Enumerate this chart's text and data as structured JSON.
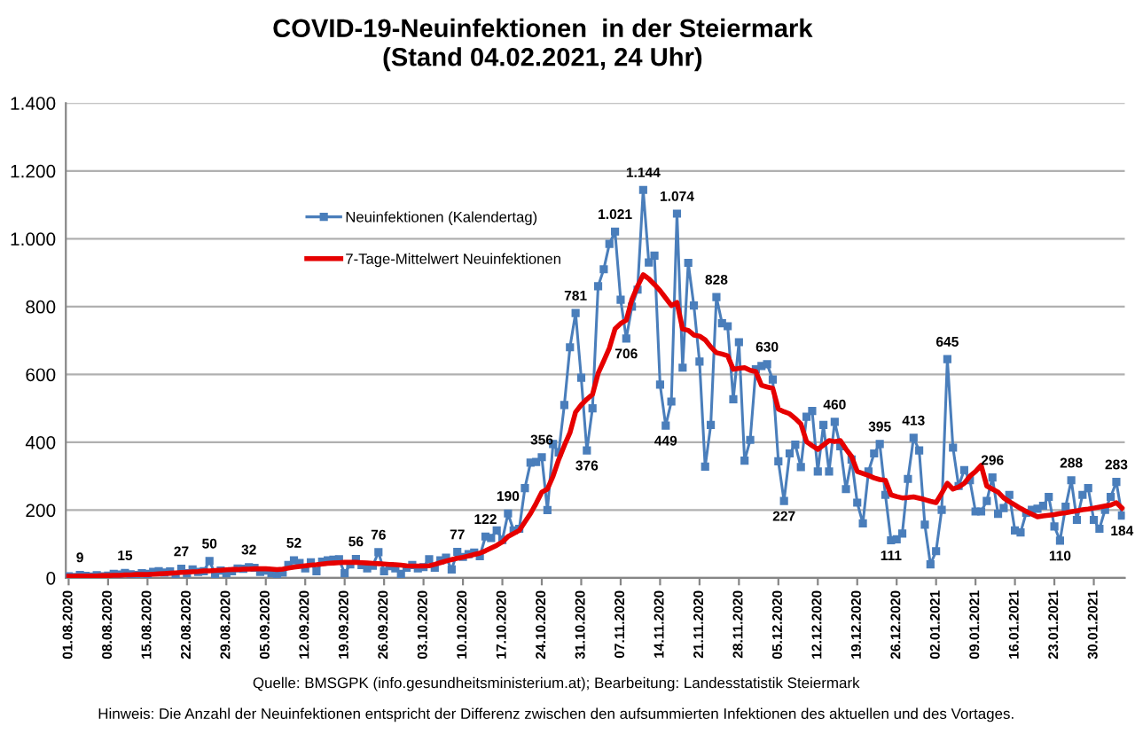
{
  "chart_data": {
    "type": "line",
    "title": "COVID-19-Neuinfektionen  in der Steiermark\n(Stand 04.02.2021, 24 Uhr)",
    "categories": [
      "01.08.2020",
      null,
      null,
      null,
      null,
      null,
      null,
      "08.08.2020",
      null,
      null,
      null,
      null,
      null,
      null,
      "15.08.2020",
      null,
      null,
      null,
      null,
      null,
      null,
      "22.08.2020",
      null,
      null,
      null,
      null,
      null,
      null,
      "29.08.2020",
      null,
      null,
      null,
      null,
      null,
      null,
      "05.09.2020",
      null,
      null,
      null,
      null,
      null,
      null,
      "12.09.2020",
      null,
      null,
      null,
      null,
      null,
      null,
      "19.09.2020",
      null,
      null,
      null,
      null,
      null,
      null,
      "26.09.2020",
      null,
      null,
      null,
      null,
      null,
      null,
      "03.10.2020",
      null,
      null,
      null,
      null,
      null,
      null,
      "10.10.2020",
      null,
      null,
      null,
      null,
      null,
      null,
      "17.10.2020",
      null,
      null,
      null,
      null,
      null,
      null,
      "24.10.2020",
      null,
      null,
      null,
      null,
      null,
      null,
      "31.10.2020",
      null,
      null,
      null,
      null,
      null,
      null,
      "07.11.2020",
      null,
      null,
      null,
      null,
      null,
      null,
      "14.11.2020",
      null,
      null,
      null,
      null,
      null,
      null,
      "21.11.2020",
      null,
      null,
      null,
      null,
      null,
      null,
      "28.11.2020",
      null,
      null,
      null,
      null,
      null,
      null,
      "05.12.2020",
      null,
      null,
      null,
      null,
      null,
      null,
      "12.12.2020",
      null,
      null,
      null,
      null,
      null,
      null,
      "19.12.2020",
      null,
      null,
      null,
      null,
      null,
      null,
      "26.12.2020",
      null,
      null,
      null,
      null,
      null,
      null,
      "02.01.2021",
      null,
      null,
      null,
      null,
      null,
      null,
      "09.01.2021",
      null,
      null,
      null,
      null,
      null,
      null,
      "16.01.2021",
      null,
      null,
      null,
      null,
      null,
      null,
      "23.01.2021",
      null,
      null,
      null,
      null,
      null,
      null,
      "30.01.2021",
      null,
      null,
      null,
      null,
      null
    ],
    "series": [
      {
        "name": "Neuinfektionen (Kalendertag)",
        "color": "#4a7ebb",
        "marker": "square",
        "values": [
          5,
          3,
          9,
          6,
          4,
          8,
          5,
          7,
          12,
          10,
          15,
          11,
          9,
          14,
          12,
          18,
          20,
          16,
          19,
          8,
          27,
          14,
          25,
          18,
          20,
          50,
          12,
          22,
          14,
          20,
          28,
          27,
          32,
          30,
          18,
          22,
          14,
          6,
          16,
          38,
          52,
          44,
          28,
          46,
          20,
          48,
          52,
          54,
          55,
          14,
          40,
          56,
          38,
          28,
          36,
          76,
          20,
          35,
          28,
          12,
          30,
          38,
          28,
          32,
          55,
          30,
          52,
          60,
          25,
          77,
          62,
          70,
          75,
          64,
          122,
          118,
          140,
          112,
          190,
          140,
          145,
          265,
          340,
          342,
          356,
          200,
          395,
          370,
          510,
          680,
          781,
          590,
          376,
          500,
          860,
          910,
          985,
          1021,
          820,
          706,
          800,
          850,
          1144,
          930,
          950,
          570,
          449,
          520,
          1074,
          620,
          929,
          803,
          638,
          328,
          451,
          828,
          751,
          742,
          527,
          695,
          346,
          407,
          615,
          625,
          630,
          585,
          344,
          227,
          367,
          393,
          327,
          475,
          492,
          314,
          451,
          314,
          460,
          388,
          262,
          349,
          222,
          161,
          314,
          367,
          395,
          245,
          111,
          114,
          131,
          292,
          413,
          376,
          157,
          40,
          79,
          201,
          645,
          384,
          271,
          318,
          288,
          196,
          196,
          227,
          296,
          189,
          206,
          245,
          140,
          134,
          192,
          201,
          204,
          213,
          239,
          152,
          110,
          210,
          288,
          171,
          245,
          265,
          171,
          145,
          201,
          239,
          283,
          184
        ],
        "value_labels": [
          null,
          null,
          "9",
          null,
          null,
          null,
          null,
          null,
          null,
          null,
          "15",
          null,
          null,
          null,
          null,
          null,
          null,
          null,
          null,
          null,
          "27",
          null,
          null,
          null,
          null,
          "50",
          null,
          null,
          null,
          null,
          null,
          null,
          "32",
          null,
          null,
          null,
          null,
          null,
          null,
          null,
          "52",
          null,
          null,
          null,
          null,
          null,
          null,
          null,
          null,
          null,
          null,
          "56",
          null,
          null,
          null,
          "76",
          null,
          null,
          null,
          null,
          null,
          null,
          null,
          null,
          null,
          null,
          null,
          null,
          null,
          "77",
          null,
          null,
          null,
          null,
          "122",
          null,
          null,
          null,
          "190",
          null,
          null,
          null,
          null,
          null,
          "356",
          null,
          null,
          null,
          null,
          null,
          "781",
          null,
          "376",
          null,
          null,
          null,
          null,
          "1.021",
          null,
          "706",
          null,
          null,
          "1.144",
          null,
          null,
          null,
          "449",
          null,
          "1.074",
          null,
          null,
          null,
          null,
          null,
          null,
          "828",
          null,
          null,
          null,
          null,
          null,
          null,
          null,
          null,
          "630",
          null,
          null,
          "227",
          null,
          null,
          null,
          null,
          null,
          null,
          null,
          null,
          "460",
          null,
          null,
          null,
          null,
          null,
          null,
          null,
          "395",
          null,
          "111",
          null,
          null,
          null,
          "413",
          null,
          null,
          null,
          null,
          null,
          "645",
          null,
          null,
          null,
          null,
          null,
          null,
          null,
          "296",
          null,
          null,
          null,
          null,
          null,
          null,
          null,
          null,
          null,
          null,
          null,
          "110",
          null,
          "288",
          null,
          null,
          null,
          null,
          null,
          null,
          null,
          "283",
          "184"
        ]
      },
      {
        "name": "7-Tage-Mittelwert Neuinfektionen",
        "color": "#e60000",
        "marker": "none",
        "values": [
          5,
          5,
          6,
          6,
          6,
          6,
          7,
          7,
          8,
          8,
          9,
          9,
          10,
          10,
          10,
          11,
          12,
          13,
          14,
          15,
          16,
          17,
          18,
          19,
          21,
          21,
          22,
          23,
          24,
          25,
          25,
          26,
          26,
          27,
          27,
          27,
          26,
          25,
          26,
          29,
          32,
          34,
          36,
          38,
          39,
          41,
          43,
          44,
          45,
          46,
          46,
          46,
          45,
          44,
          43,
          42,
          41,
          40,
          39,
          38,
          36,
          35,
          35,
          35,
          36,
          40,
          45,
          50,
          54,
          58,
          61,
          65,
          69,
          73,
          80,
          88,
          96,
          106,
          122,
          131,
          140,
          165,
          190,
          220,
          253,
          262,
          300,
          349,
          390,
          428,
          489,
          510,
          527,
          541,
          603,
          640,
          678,
          734,
          750,
          760,
          821,
          860,
          894,
          882,
          865,
          847,
          825,
          803,
          812,
          734,
          730,
          716,
          713,
          702,
          681,
          664,
          660,
          655,
          615,
          618,
          620,
          612,
          608,
          568,
          563,
          559,
          498,
          490,
          484,
          470,
          454,
          402,
          390,
          379,
          392,
          405,
          402,
          405,
          380,
          358,
          314,
          308,
          302,
          295,
          290,
          288,
          245,
          240,
          236,
          237,
          239,
          235,
          231,
          226,
          222,
          250,
          279,
          262,
          268,
          279,
          300,
          314,
          332,
          271,
          262,
          253,
          236,
          225,
          215,
          205,
          196,
          188,
          180,
          183,
          185,
          187,
          190,
          192,
          195,
          198,
          201,
          203,
          206,
          209,
          212,
          215,
          222,
          206
        ]
      }
    ],
    "ylim": [
      0,
      1400
    ],
    "yticks": [
      0,
      200,
      400,
      600,
      800,
      {
        "value": 1000,
        "label": "1.000"
      },
      {
        "value": 1200,
        "label": "1.200"
      },
      {
        "value": 1400,
        "label": "1.400"
      }
    ],
    "grid": "y",
    "legend": "top left",
    "annotations": [
      "Quelle: BMSGPK (info.gesundheitsministerium.at); Bearbeitung: Landesstatistik Steiermark",
      "Hinweis: Die Anzahl der Neuinfektionen entspricht der Differenz zwischen den aufsummierten Infektionen des aktuellen und des Vortages."
    ]
  }
}
